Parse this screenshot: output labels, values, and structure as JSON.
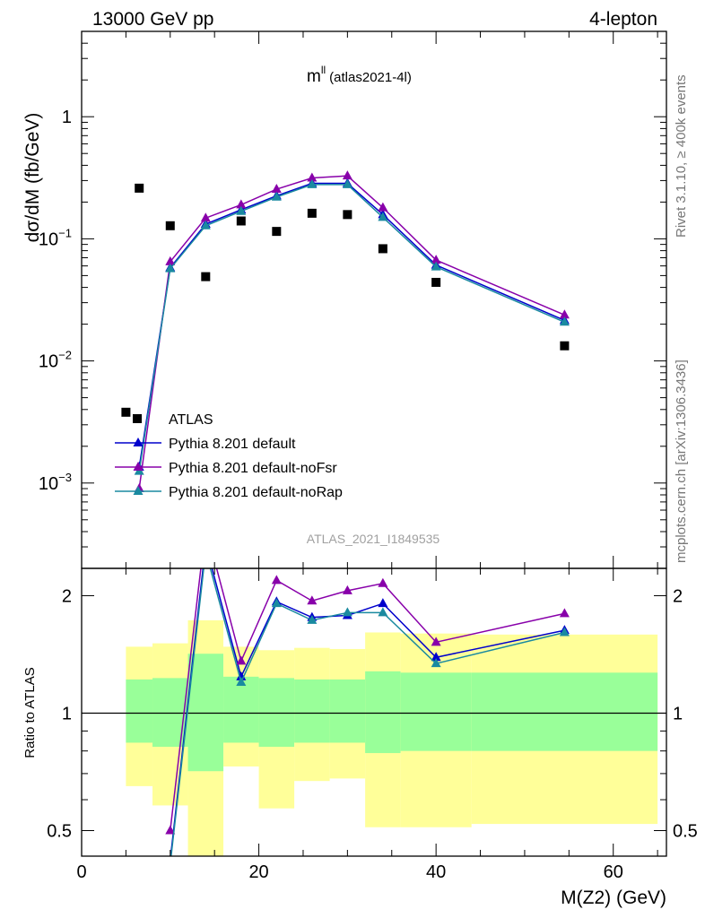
{
  "header": {
    "left": "13000 GeV pp",
    "right": "4-lepton"
  },
  "title": {
    "main": "m",
    "sup": "ll",
    "paren": "(atlas2021-4l)"
  },
  "watermark": "ATLAS_2021_I1849535",
  "side_text": {
    "top": "Rivet 3.1.10, ≥ 400k events",
    "bottom": "mcplots.cern.ch [arXiv:1306.3436]"
  },
  "colors": {
    "data": "#000000",
    "default": "#0000cc",
    "noFsr": "#8800aa",
    "noRap": "#1a8aa0",
    "band_outer": "#ffff99",
    "band_inner": "#99ff99"
  },
  "chart_data": [
    {
      "type": "line",
      "panel": "main",
      "ylabel": "dσ/dM (fb/GeV)",
      "yscale": "log",
      "ylim": [
        0.0002,
        5
      ],
      "xlim": [
        0,
        66
      ],
      "yticks": [
        {
          "label": "10",
          "sup": "−3",
          "value": 0.001
        },
        {
          "label": "10",
          "sup": "−2",
          "value": 0.01
        },
        {
          "label": "10",
          "sup": "−1",
          "value": 0.1
        },
        {
          "label": "1",
          "sup": "",
          "value": 1
        }
      ],
      "legend": [
        {
          "label": "ATLAS",
          "key": "data"
        },
        {
          "label": "Pythia 8.201 default",
          "key": "default"
        },
        {
          "label": "Pythia 8.201 default-noFsr",
          "key": "noFsr"
        },
        {
          "label": "Pythia 8.201 default-noRap",
          "key": "noRap"
        }
      ],
      "series": [
        {
          "name": "ATLAS",
          "key": "data",
          "x": [
            5,
            6.5,
            10,
            14,
            18,
            22,
            26,
            30,
            34,
            40,
            54.5
          ],
          "y": [
            0.0038,
            0.26,
            0.128,
            0.049,
            0.14,
            0.115,
            0.162,
            0.158,
            0.083,
            0.044,
            0.0133
          ]
        },
        {
          "name": "Pythia 8.201 default",
          "key": "default",
          "x": [
            6.5,
            10,
            14,
            18,
            22,
            26,
            30,
            34,
            40,
            54.5
          ],
          "y": [
            0.00135,
            0.058,
            0.132,
            0.173,
            0.225,
            0.285,
            0.285,
            0.158,
            0.061,
            0.0215
          ]
        },
        {
          "name": "Pythia 8.201 default-noFsr",
          "key": "noFsr",
          "x": [
            6.5,
            10,
            14,
            18,
            22,
            26,
            30,
            34,
            40,
            54.5
          ],
          "y": [
            0.0009,
            0.065,
            0.148,
            0.19,
            0.255,
            0.315,
            0.328,
            0.18,
            0.067,
            0.0238
          ]
        },
        {
          "name": "Pythia 8.201 default-noRap",
          "key": "noRap",
          "x": [
            6.5,
            10,
            14,
            18,
            22,
            26,
            30,
            34,
            40,
            54.5
          ],
          "y": [
            0.00125,
            0.057,
            0.128,
            0.168,
            0.22,
            0.278,
            0.278,
            0.15,
            0.059,
            0.0208
          ]
        }
      ]
    },
    {
      "type": "line",
      "panel": "ratio",
      "ylabel": "Ratio to ATLAS",
      "xlabel": "M(Z2) (GeV)",
      "yscale": "log",
      "ylim": [
        0.43,
        2.35
      ],
      "xlim": [
        0,
        66
      ],
      "yticks": [
        {
          "label": "0.5",
          "value": 0.5
        },
        {
          "label": "1",
          "value": 1
        },
        {
          "label": "2",
          "value": 2
        }
      ],
      "xticks": [
        {
          "label": "0",
          "value": 0
        },
        {
          "label": "20",
          "value": 20
        },
        {
          "label": "40",
          "value": 40
        },
        {
          "label": "60",
          "value": 60
        }
      ],
      "bands": {
        "edges": [
          5,
          8,
          12,
          16,
          20,
          24,
          28,
          32,
          36,
          44,
          65
        ],
        "outer_lo": [
          0.65,
          0.58,
          0.3,
          0.73,
          0.57,
          0.67,
          0.68,
          0.51,
          0.51,
          0.52
        ],
        "outer_hi": [
          1.48,
          1.51,
          1.73,
          1.48,
          1.45,
          1.47,
          1.46,
          1.61,
          1.6,
          1.59
        ],
        "inner_lo": [
          0.84,
          0.82,
          0.71,
          0.84,
          0.82,
          0.84,
          0.84,
          0.79,
          0.8,
          0.8
        ],
        "inner_hi": [
          1.22,
          1.23,
          1.42,
          1.24,
          1.23,
          1.22,
          1.22,
          1.28,
          1.27,
          1.27
        ]
      },
      "series": [
        {
          "name": "Pythia 8.201 default",
          "key": "default",
          "x": [
            10,
            14,
            18,
            22,
            26,
            30,
            34,
            40,
            54.5
          ],
          "y": [
            0.42,
            2.7,
            1.24,
            1.93,
            1.76,
            1.78,
            1.91,
            1.39,
            1.63
          ]
        },
        {
          "name": "Pythia 8.201 default-noFsr",
          "key": "noFsr",
          "x": [
            10,
            14,
            18,
            22,
            26,
            30,
            34,
            40,
            54.5
          ],
          "y": [
            0.5,
            3.0,
            1.36,
            2.19,
            1.94,
            2.06,
            2.15,
            1.52,
            1.8
          ]
        },
        {
          "name": "Pythia 8.201 default-noRap",
          "key": "noRap",
          "x": [
            10,
            14,
            18,
            22,
            26,
            30,
            34,
            40,
            54.5
          ],
          "y": [
            0.41,
            2.6,
            1.2,
            1.91,
            1.73,
            1.81,
            1.81,
            1.34,
            1.61
          ]
        }
      ]
    }
  ]
}
